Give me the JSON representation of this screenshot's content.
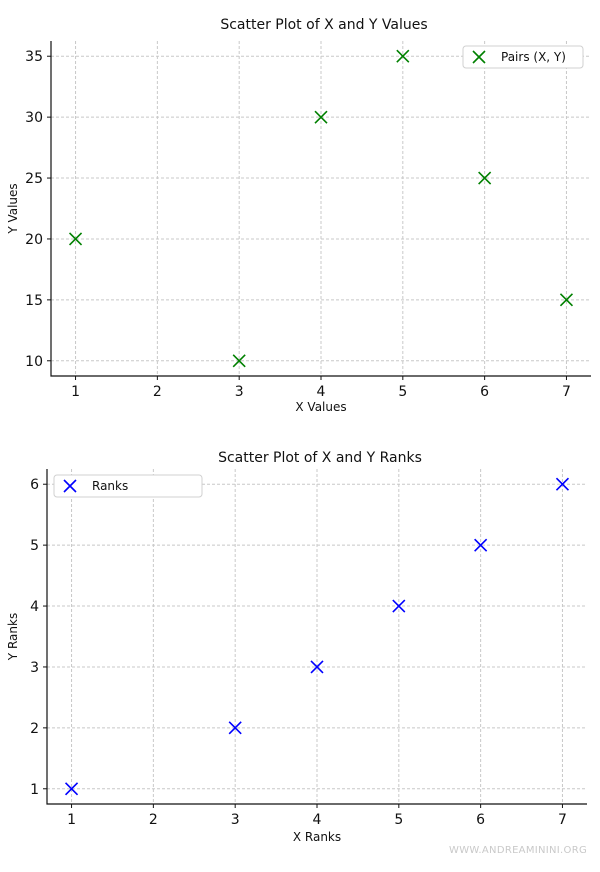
{
  "chart_data": [
    {
      "type": "scatter",
      "title": "Scatter Plot of X and Y Values",
      "xlabel": "X Values",
      "ylabel": "Y Values",
      "xticks": [
        1,
        2,
        3,
        4,
        5,
        6,
        7
      ],
      "yticks": [
        10,
        15,
        20,
        25,
        30,
        35
      ],
      "xlim": [
        0.7,
        7.3
      ],
      "ylim": [
        8.75,
        36.25
      ],
      "grid": true,
      "legend_position": "top-right",
      "series": [
        {
          "name": "Pairs (X, Y)",
          "color": "#008000",
          "marker": "x",
          "x": [
            1,
            3,
            4,
            5,
            6,
            7
          ],
          "y": [
            20,
            10,
            30,
            35,
            25,
            15
          ]
        }
      ]
    },
    {
      "type": "scatter",
      "title": "Scatter Plot of X and Y Ranks",
      "xlabel": "X Ranks",
      "ylabel": "Y Ranks",
      "xticks": [
        1,
        2,
        3,
        4,
        5,
        6,
        7
      ],
      "yticks": [
        1,
        2,
        3,
        4,
        5,
        6
      ],
      "xlim": [
        0.7,
        7.3
      ],
      "ylim": [
        0.75,
        6.25
      ],
      "grid": true,
      "legend_position": "top-left",
      "series": [
        {
          "name": "Ranks",
          "color": "#0000ff",
          "marker": "x",
          "x": [
            1,
            3,
            4,
            5,
            6,
            7
          ],
          "y": [
            1,
            2,
            3,
            4,
            5,
            6
          ]
        }
      ]
    }
  ],
  "watermark": "WWW.ANDREAMININI.ORG"
}
